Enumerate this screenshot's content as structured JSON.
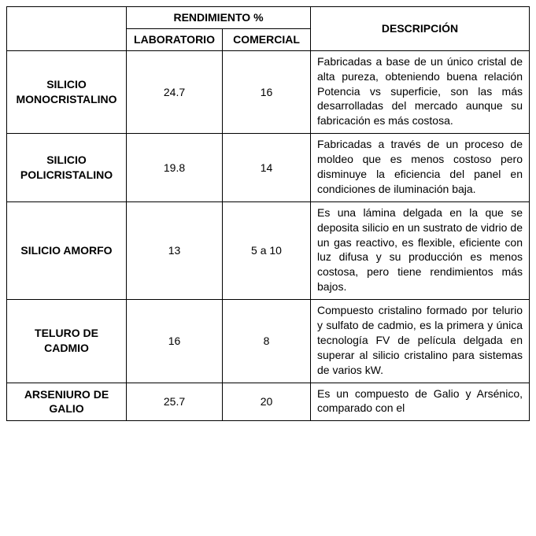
{
  "table": {
    "header_group": "RENDIMIENTO %",
    "header_description": "DESCRIPCIÓN",
    "header_lab": "LABORATORIO",
    "header_com": "COMERCIAL",
    "rows": [
      {
        "material": "SILICIO MONOCRISTALINO",
        "lab": "24.7",
        "com": "16",
        "desc": "Fabricadas a base de un único cristal de alta pureza, obteniendo buena relación Potencia vs superficie, son las más desarrolladas del mercado aunque su fabricación es más costosa."
      },
      {
        "material": "SILICIO POLICRISTALINO",
        "lab": "19.8",
        "com": "14",
        "desc": "Fabricadas a través de un proceso de moldeo que es menos costoso pero disminuye la eficiencia del panel en condiciones de iluminación baja."
      },
      {
        "material": "SILICIO AMORFO",
        "lab": "13",
        "com": "5 a 10",
        "desc": "Es una lámina delgada en la que se deposita silicio en un sustrato de vidrio de un gas reactivo, es flexible, eficiente con luz difusa y su producción es menos costosa, pero tiene rendimientos más bajos."
      },
      {
        "material": "TELURO DE CADMIO",
        "lab": "16",
        "com": "8",
        "desc": "Compuesto cristalino formado por telurio y sulfato de cadmio, es la primera y única tecnología FV de película delgada en superar al silicio cristalino para sistemas de varios kW."
      },
      {
        "material": "ARSENIURO DE GALIO",
        "lab": "25.7",
        "com": "20",
        "desc": "Es un compuesto de Galio y Arsénico, comparado con el"
      }
    ],
    "colors": {
      "border": "#000000",
      "background": "#ffffff",
      "text": "#000000"
    },
    "font_family": "Arial",
    "font_size_pt": 10
  }
}
